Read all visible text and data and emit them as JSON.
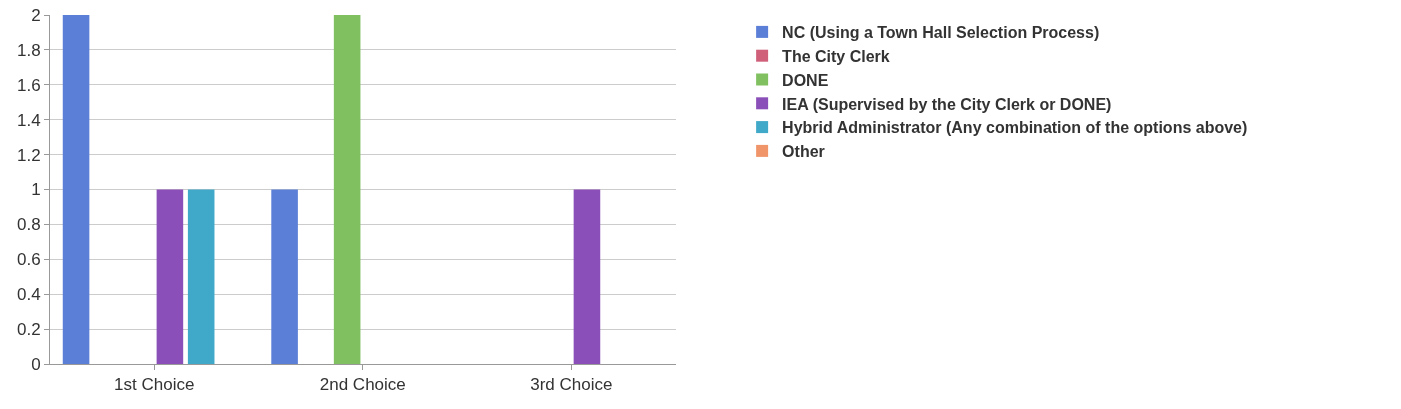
{
  "chart_data": {
    "type": "bar",
    "categories": [
      "1st Choice",
      "2nd Choice",
      "3rd Choice"
    ],
    "series": [
      {
        "name": "NC (Using a Town Hall Selection Process)",
        "color": "#5b7fd6",
        "values": [
          2,
          1,
          0
        ]
      },
      {
        "name": "The City Clerk",
        "color": "#d0607a",
        "values": [
          0,
          0,
          0
        ]
      },
      {
        "name": "DONE",
        "color": "#80c060",
        "values": [
          0,
          2,
          0
        ]
      },
      {
        "name": "IEA (Supervised by the City Clerk or DONE)",
        "color": "#8a4fb8",
        "values": [
          1,
          0,
          1
        ]
      },
      {
        "name": "Hybrid Administrator (Any combination of the options above)",
        "color": "#40a8c8",
        "values": [
          1,
          0,
          0
        ]
      },
      {
        "name": "Other",
        "color": "#f0956a",
        "values": [
          0,
          0,
          0
        ]
      }
    ],
    "ylim": [
      0,
      2
    ],
    "yticks": [
      0,
      0.2,
      0.4,
      0.6,
      0.8,
      1,
      1.2,
      1.4,
      1.6,
      1.8,
      2
    ],
    "grid": "y",
    "legend": "right"
  }
}
